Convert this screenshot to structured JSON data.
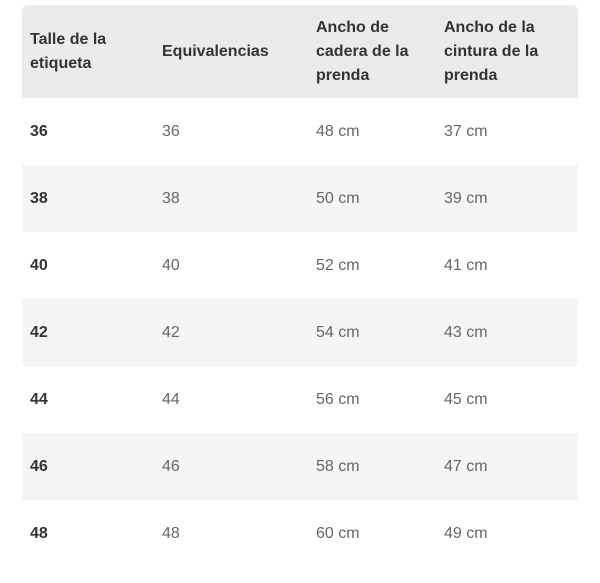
{
  "colors": {
    "header_bg": "#ebebeb",
    "stripe_bg": "#f5f5f5",
    "heading_text": "#333333",
    "body_text": "#666666"
  },
  "table": {
    "columns": [
      {
        "label": "Talle de la etiqueta"
      },
      {
        "label": "Equivalencias"
      },
      {
        "label": "Ancho de cadera de la prenda"
      },
      {
        "label": "Ancho de la cintura de la prenda"
      }
    ],
    "rows": [
      {
        "size": "36",
        "equiv": "36",
        "hip": "48 cm",
        "waist": "37 cm"
      },
      {
        "size": "38",
        "equiv": "38",
        "hip": "50 cm",
        "waist": "39 cm"
      },
      {
        "size": "40",
        "equiv": "40",
        "hip": "52 cm",
        "waist": "41 cm"
      },
      {
        "size": "42",
        "equiv": "42",
        "hip": "54 cm",
        "waist": "43 cm"
      },
      {
        "size": "44",
        "equiv": "44",
        "hip": "56 cm",
        "waist": "45 cm"
      },
      {
        "size": "46",
        "equiv": "46",
        "hip": "58 cm",
        "waist": "47 cm"
      },
      {
        "size": "48",
        "equiv": "48",
        "hip": "60 cm",
        "waist": "49 cm"
      }
    ]
  }
}
